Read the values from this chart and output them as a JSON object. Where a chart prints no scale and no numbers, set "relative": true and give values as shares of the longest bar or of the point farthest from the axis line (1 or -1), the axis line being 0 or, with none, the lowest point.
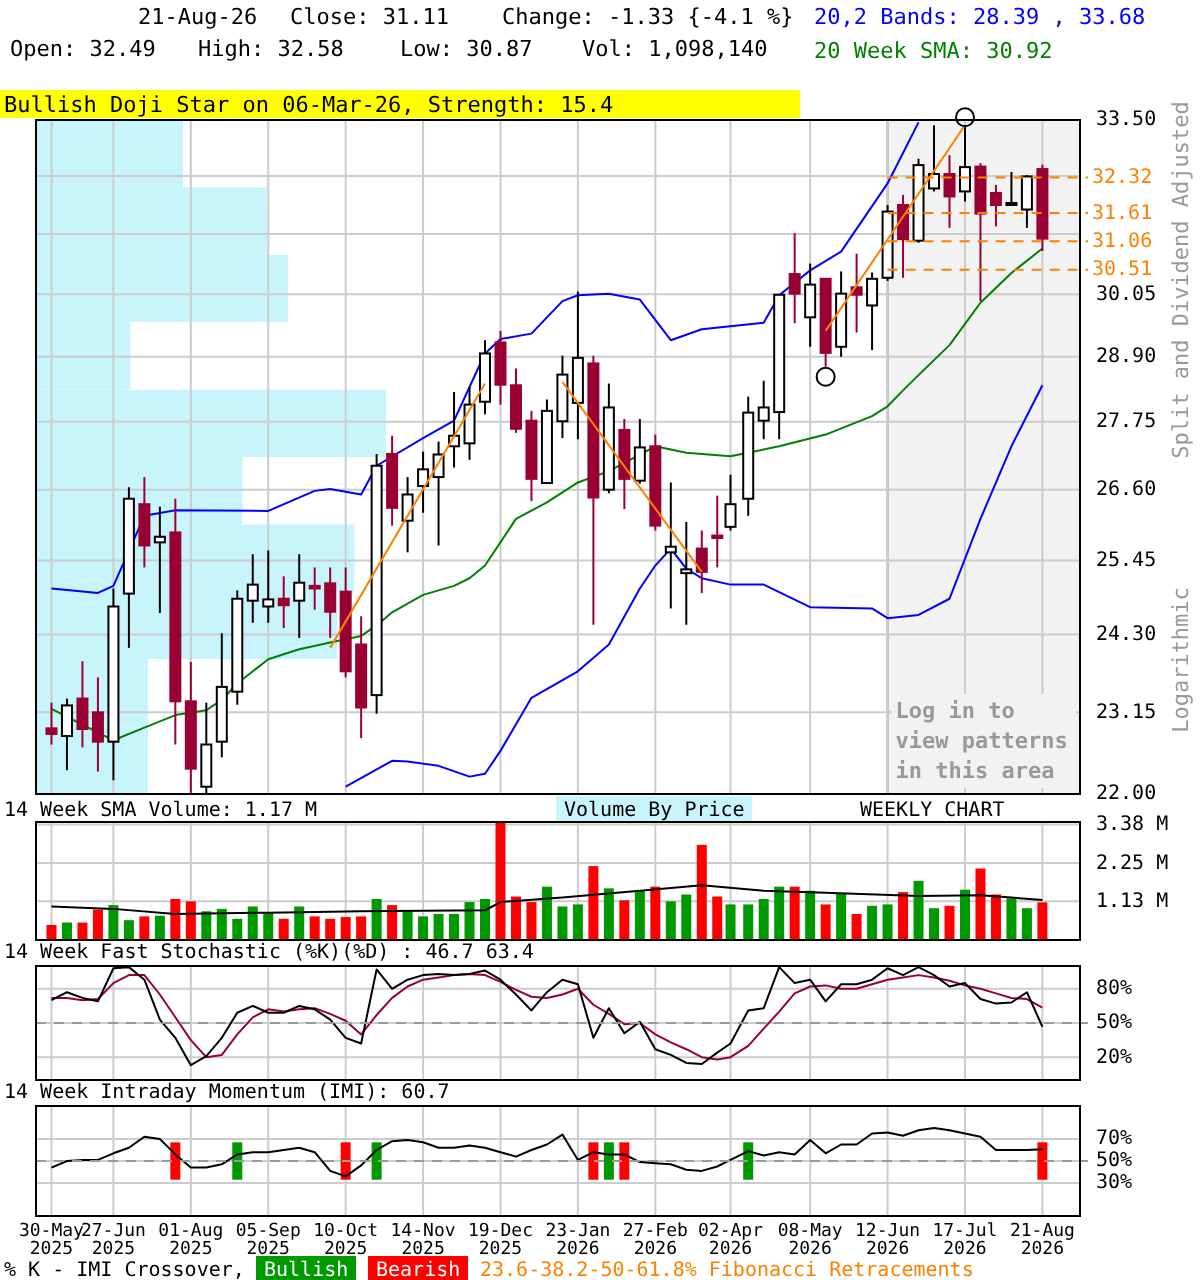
{
  "chart_data": [
    {
      "type": "candlestick",
      "log": true,
      "grid": true,
      "tick_labels": "y",
      "legend": "top right",
      "ylabel": "Split and Dividend Adjusted",
      "xlim": [
        "2025-05-23",
        "2026-09-07"
      ],
      "ylim": [
        22,
        33.5
      ],
      "yticks": [
        {
          "value": 22,
          "label": "22.00"
        },
        {
          "value": 23.15,
          "label": "23.15"
        },
        {
          "value": 24.3,
          "label": "24.30"
        },
        {
          "value": 25.45,
          "label": "25.45"
        },
        {
          "value": 26.6,
          "label": "26.60"
        },
        {
          "value": 27.75,
          "label": "27.75"
        },
        {
          "value": 28.9,
          "label": "28.90"
        },
        {
          "value": 30.05,
          "label": "30.05"
        },
        {
          "value": 31.2,
          "label": null
        },
        {
          "value": 32.35,
          "label": null
        },
        {
          "value": 33.5,
          "label": "33.50"
        }
      ],
      "xticks": [
        {
          "value": "2025-05-30",
          "label": null
        },
        {
          "value": "2025-06-27",
          "label": null
        },
        {
          "value": "2025-08-01",
          "label": null
        },
        {
          "value": "2025-09-05",
          "label": null
        },
        {
          "value": "2025-10-10",
          "label": null
        },
        {
          "value": "2025-11-14",
          "label": null
        },
        {
          "value": "2025-12-19",
          "label": null
        },
        {
          "value": "2026-01-23",
          "label": null
        },
        {
          "value": "2026-02-27",
          "label": null
        },
        {
          "value": "2026-04-02",
          "label": null
        },
        {
          "value": "2026-05-08",
          "label": null
        },
        {
          "value": "2026-06-12",
          "label": null
        },
        {
          "value": "2026-07-17",
          "label": null
        },
        {
          "value": "2026-08-21",
          "label": null
        }
      ],
      "x": [
        "2025-05-30",
        "2025-06-06",
        "2025-06-13",
        "2025-06-20",
        "2025-06-27",
        "2025-07-04",
        "2025-07-11",
        "2025-07-18",
        "2025-07-25",
        "2025-08-01",
        "2025-08-08",
        "2025-08-15",
        "2025-08-22",
        "2025-08-29",
        "2025-09-05",
        "2025-09-12",
        "2025-09-19",
        "2025-09-26",
        "2025-10-03",
        "2025-10-10",
        "2025-10-17",
        "2025-10-24",
        "2025-10-31",
        "2025-11-07",
        "2025-11-14",
        "2025-11-21",
        "2025-11-28",
        "2025-12-05",
        "2025-12-12",
        "2025-12-19",
        "2025-12-26",
        "2026-01-02",
        "2026-01-09",
        "2026-01-16",
        "2026-01-23",
        "2026-01-30",
        "2026-02-06",
        "2026-02-13",
        "2026-02-20",
        "2026-02-27",
        "2026-03-06",
        "2026-03-13",
        "2026-03-20",
        "2026-03-27",
        "2026-04-02",
        "2026-04-10",
        "2026-04-17",
        "2026-04-24",
        "2026-05-01",
        "2026-05-08",
        "2026-05-15",
        "2026-05-22",
        "2026-05-29",
        "2026-06-05",
        "2026-06-12",
        "2026-06-19",
        "2026-06-26",
        "2026-07-03",
        "2026-07-10",
        "2026-07-17",
        "2026-07-24",
        "2026-07-31",
        "2026-08-07",
        "2026-08-14",
        "2026-08-21"
      ],
      "ohlc": [
        [
          22.92,
          23.29,
          22.69,
          22.84
        ],
        [
          22.81,
          23.35,
          22.33,
          23.25
        ],
        [
          23.35,
          23.9,
          22.65,
          22.91
        ],
        [
          23.15,
          23.66,
          22.31,
          22.73
        ],
        [
          22.73,
          25.01,
          22.19,
          24.73
        ],
        [
          24.93,
          26.64,
          24.1,
          26.45
        ],
        [
          26.36,
          26.81,
          25.34,
          25.69
        ],
        [
          25.74,
          26.32,
          24.63,
          25.83
        ],
        [
          25.9,
          26.45,
          22.69,
          23.31
        ],
        [
          23.31,
          23.89,
          22.0,
          22.35
        ],
        [
          22.1,
          23.29,
          22.0,
          22.69
        ],
        [
          22.73,
          24.32,
          22.51,
          23.52
        ],
        [
          23.45,
          24.98,
          23.26,
          24.85
        ],
        [
          24.82,
          25.55,
          24.48,
          25.07
        ],
        [
          24.73,
          25.61,
          24.48,
          24.84
        ],
        [
          24.85,
          25.2,
          24.4,
          24.75
        ],
        [
          24.82,
          25.55,
          24.25,
          25.1
        ],
        [
          25.05,
          25.34,
          24.68,
          25.01
        ],
        [
          25.09,
          25.34,
          24.25,
          24.65
        ],
        [
          24.96,
          25.34,
          23.66,
          23.75
        ],
        [
          24.15,
          24.58,
          22.78,
          23.22
        ],
        [
          23.4,
          27.2,
          23.13,
          27.0
        ],
        [
          27.2,
          27.51,
          26.01,
          26.3
        ],
        [
          26.09,
          26.81,
          25.58,
          26.52
        ],
        [
          26.66,
          27.24,
          26.22,
          26.94
        ],
        [
          26.81,
          27.41,
          25.69,
          27.19
        ],
        [
          27.33,
          28.27,
          26.97,
          27.51
        ],
        [
          27.38,
          28.36,
          27.1,
          28.05
        ],
        [
          28.1,
          29.2,
          27.88,
          28.96
        ],
        [
          29.16,
          29.37,
          28.05,
          28.4
        ],
        [
          28.39,
          28.69,
          27.56,
          27.63
        ],
        [
          27.77,
          27.94,
          26.41,
          26.78
        ],
        [
          26.71,
          28.14,
          26.71,
          27.94
        ],
        [
          27.76,
          28.92,
          27.47,
          28.58
        ],
        [
          28.08,
          30.1,
          27.45,
          28.88
        ],
        [
          28.78,
          28.92,
          24.45,
          26.47
        ],
        [
          26.6,
          28.42,
          26.54,
          28.0
        ],
        [
          27.61,
          27.8,
          26.28,
          26.78
        ],
        [
          26.75,
          27.8,
          26.7,
          27.31
        ],
        [
          27.33,
          27.53,
          25.93,
          26.01
        ],
        [
          25.58,
          26.72,
          24.7,
          25.67
        ],
        [
          25.25,
          26.07,
          24.45,
          25.31
        ],
        [
          25.64,
          25.93,
          24.94,
          25.27
        ],
        [
          25.85,
          26.5,
          25.34,
          25.81
        ],
        [
          25.99,
          26.85,
          25.93,
          26.36
        ],
        [
          26.45,
          28.19,
          26.17,
          27.91
        ],
        [
          27.77,
          28.47,
          27.45,
          28.0
        ],
        [
          27.92,
          30.04,
          27.45,
          30.04
        ],
        [
          30.43,
          31.22,
          29.51,
          30.06
        ],
        [
          29.62,
          30.63,
          29.08,
          30.23
        ],
        [
          30.34,
          30.34,
          28.72,
          28.97
        ],
        [
          29.08,
          30.48,
          28.9,
          30.06
        ],
        [
          30.18,
          30.82,
          29.34,
          30.04
        ],
        [
          29.84,
          30.46,
          29.02,
          30.34
        ],
        [
          30.36,
          31.77,
          30.3,
          31.64
        ],
        [
          31.77,
          31.97,
          30.36,
          31.1
        ],
        [
          31.07,
          32.7,
          31.03,
          32.57
        ],
        [
          32.1,
          33.39,
          32.04,
          32.39
        ],
        [
          32.39,
          32.77,
          31.32,
          31.94
        ],
        [
          32.04,
          33.39,
          31.84,
          32.53
        ],
        [
          32.54,
          32.61,
          29.92,
          31.6
        ],
        [
          32.01,
          32.17,
          31.35,
          31.77
        ],
        [
          31.77,
          32.43,
          31.77,
          31.81
        ],
        [
          31.68,
          32.37,
          31.32,
          32.34
        ],
        [
          32.49,
          32.58,
          30.87,
          31.11
        ]
      ],
      "series": [
        {
          "type": "line",
          "name": "20,2 Bands: 28.39 , 33.68",
          "color": "#0000ff",
          "x": [
            "2025-05-30",
            "2025-06-20",
            "2025-06-27",
            "2025-07-11",
            "2025-07-25",
            "2025-09-05",
            "2025-09-26",
            "2025-10-03",
            "2025-10-17",
            "2025-10-24",
            "2025-11-14",
            "2025-11-28",
            "2025-12-05",
            "2025-12-12",
            "2025-12-19",
            "2026-01-02",
            "2026-01-16",
            "2026-01-23",
            "2026-02-06",
            "2026-02-20",
            "2026-03-06",
            "2026-03-20",
            "2026-04-17",
            "2026-04-24",
            "2026-05-08",
            "2026-05-22",
            "2026-06-12",
            "2026-06-26"
          ],
          "values": [
            25.01,
            24.94,
            25.05,
            26.17,
            26.26,
            26.25,
            26.58,
            26.61,
            26.52,
            27.0,
            27.47,
            27.77,
            28.36,
            28.96,
            29.22,
            29.32,
            29.92,
            30.03,
            30.06,
            29.95,
            29.2,
            29.4,
            29.52,
            30.03,
            30.5,
            30.86,
            32.2,
            33.45
          ]
        },
        {
          "type": "line",
          "name": "20 Week SMA: 30.92",
          "color": "#008000",
          "x": [
            "2025-05-30",
            "2025-06-27",
            "2025-07-11",
            "2025-07-25",
            "2025-08-08",
            "2025-08-15",
            "2025-08-22",
            "2025-09-05",
            "2025-09-19",
            "2025-10-03",
            "2025-10-17",
            "2025-10-24",
            "2025-10-31",
            "2025-11-14",
            "2025-11-28",
            "2025-12-05",
            "2025-12-12",
            "2025-12-26",
            "2026-01-09",
            "2026-01-23",
            "2026-02-06",
            "2026-02-27",
            "2026-03-13",
            "2026-04-02",
            "2026-04-24",
            "2026-05-15",
            "2026-06-05",
            "2026-06-12",
            "2026-06-19",
            "2026-06-26",
            "2026-07-10",
            "2026-07-24",
            "2026-08-07",
            "2026-08-21"
          ],
          "values": [
            23.2,
            22.75,
            22.93,
            23.11,
            23.18,
            23.33,
            23.57,
            23.93,
            24.08,
            24.18,
            24.28,
            24.44,
            24.64,
            24.91,
            25.05,
            25.17,
            25.37,
            26.12,
            26.39,
            26.72,
            26.91,
            27.33,
            27.22,
            27.16,
            27.33,
            27.53,
            27.85,
            28.02,
            28.3,
            28.57,
            29.11,
            29.89,
            30.45,
            30.92
          ]
        },
        {
          "type": "line",
          "color": "#0000ff",
          "x": [
            "2025-10-10",
            "2025-10-31",
            "2025-11-07",
            "2025-11-21",
            "2025-12-05",
            "2025-12-12",
            "2025-12-19",
            "2026-01-02",
            "2026-01-23",
            "2026-02-06",
            "2026-02-20",
            "2026-02-27",
            "2026-03-06",
            "2026-03-13",
            "2026-03-20",
            "2026-04-02",
            "2026-04-17",
            "2026-05-08",
            "2026-06-05",
            "2026-06-12",
            "2026-06-26",
            "2026-07-10",
            "2026-07-24",
            "2026-08-07",
            "2026-08-21"
          ],
          "values": [
            22.1,
            22.46,
            22.45,
            22.39,
            22.24,
            22.28,
            22.6,
            23.36,
            23.75,
            24.15,
            25.01,
            25.37,
            25.64,
            25.32,
            25.17,
            25.07,
            25.07,
            24.72,
            24.7,
            24.55,
            24.6,
            24.85,
            26.12,
            27.33,
            28.39
          ]
        },
        {
          "type": "line",
          "color": "#ff8000",
          "x": [
            "2025-10-03",
            "2025-12-12",
            "2025-12-19",
            "2026-01-16",
            "2026-03-20",
            "2026-03-27",
            "2026-05-15",
            "2026-07-17"
          ],
          "values": [
            24.1,
            28.42,
            null,
            28.45,
            25.27,
            null,
            29.37,
            33.39
          ]
        }
      ],
      "ref_lines": [
        {
          "axis": "y",
          "value": 32.32,
          "label": "32.32",
          "color": "#ff8000",
          "line_style": "dashed"
        },
        {
          "axis": "y",
          "value": 31.61,
          "label": "31.61",
          "color": "#ff8000",
          "line_style": "dashed"
        },
        {
          "axis": "y",
          "value": 31.06,
          "label": "31.06",
          "color": "#ff8000",
          "line_style": "dashed"
        },
        {
          "axis": "y",
          "value": 30.51,
          "label": "30.51",
          "color": "#ff8000",
          "line_style": "dashed"
        }
      ],
      "bands": [
        {
          "axis": "x",
          "from": "2026-06-12",
          "to": "2026-09-07",
          "label": "Log in to view patterns in this area",
          "color": "#f2f2f2"
        }
      ],
      "annotations": [
        "21-Aug-26",
        "Close: 31.11",
        "Change: -1.33 {-4.1 %}",
        "Open: 32.49",
        "High: 32.58",
        "Low: 30.87",
        "Vol: 1,098,140",
        "Bullish Doji Star on 06-Mar-26, Strength: 15.4",
        "Logarithmic",
        "23.6-38.2-50-61.8% Fibonacci Retracements"
      ]
    },
    {
      "type": "bar",
      "orientation": "horizontal",
      "relative": true,
      "color": "#c8f4fc",
      "categories": [
        null,
        null,
        null,
        null,
        null,
        null,
        null,
        null,
        null,
        null
      ],
      "values": [
        0.42,
        0.66,
        0.72,
        0.27,
        1,
        0.59,
        0.91,
        0.86,
        0.32,
        0.32
      ]
    },
    {
      "type": "bar",
      "title": "14 Week SMA Volume: 1.17 M",
      "grid": true,
      "tick_labels": "y",
      "xlim": [
        "2025-05-23",
        "2026-09-07"
      ],
      "ylim": [
        0,
        3.45
      ],
      "yticks": [
        {
          "value": 1.13,
          "label": "1.13 M"
        },
        {
          "value": 2.25,
          "label": "2.25 M"
        },
        {
          "value": 3.38,
          "label": "3.38 M"
        }
      ],
      "xticks": [
        {
          "value": "2025-05-30",
          "label": null
        },
        {
          "value": "2025-06-27",
          "label": null
        },
        {
          "value": "2025-08-01",
          "label": null
        },
        {
          "value": "2025-09-05",
          "label": null
        },
        {
          "value": "2025-10-10",
          "label": null
        },
        {
          "value": "2025-11-14",
          "label": null
        },
        {
          "value": "2025-12-19",
          "label": null
        },
        {
          "value": "2026-01-23",
          "label": null
        },
        {
          "value": "2026-02-27",
          "label": null
        },
        {
          "value": "2026-04-02",
          "label": null
        },
        {
          "value": "2026-05-08",
          "label": null
        },
        {
          "value": "2026-06-12",
          "label": null
        },
        {
          "value": "2026-07-17",
          "label": null
        },
        {
          "value": "2026-08-21",
          "label": null
        }
      ],
      "x": [
        "2025-05-30",
        "2025-06-06",
        "2025-06-13",
        "2025-06-20",
        "2025-06-27",
        "2025-07-04",
        "2025-07-11",
        "2025-07-18",
        "2025-07-25",
        "2025-08-01",
        "2025-08-08",
        "2025-08-15",
        "2025-08-22",
        "2025-08-29",
        "2025-09-05",
        "2025-09-12",
        "2025-09-19",
        "2025-09-26",
        "2025-10-03",
        "2025-10-10",
        "2025-10-17",
        "2025-10-24",
        "2025-10-31",
        "2025-11-07",
        "2025-11-14",
        "2025-11-21",
        "2025-11-28",
        "2025-12-05",
        "2025-12-12",
        "2025-12-19",
        "2025-12-26",
        "2026-01-02",
        "2026-01-09",
        "2026-01-16",
        "2026-01-23",
        "2026-01-30",
        "2026-02-06",
        "2026-02-13",
        "2026-02-20",
        "2026-02-27",
        "2026-03-06",
        "2026-03-13",
        "2026-03-20",
        "2026-03-27",
        "2026-04-02",
        "2026-04-10",
        "2026-04-17",
        "2026-04-24",
        "2026-05-01",
        "2026-05-08",
        "2026-05-15",
        "2026-05-22",
        "2026-05-29",
        "2026-06-05",
        "2026-06-12",
        "2026-06-19",
        "2026-06-26",
        "2026-07-03",
        "2026-07-10",
        "2026-07-17",
        "2026-07-24",
        "2026-07-31",
        "2026-08-07",
        "2026-08-14",
        "2026-08-21"
      ],
      "series": [
        {
          "type": "bar",
          "values": [
            0.44,
            0.51,
            0.51,
            0.89,
            1.02,
            0.58,
            0.69,
            0.71,
            1.2,
            1.13,
            0.84,
            0.91,
            0.62,
            0.98,
            0.78,
            0.62,
            0.98,
            0.69,
            0.62,
            0.67,
            0.69,
            1.2,
            1.02,
            0.84,
            0.69,
            0.76,
            0.76,
            1.11,
            1.2,
            3.45,
            1.27,
            1.11,
            1.56,
            0.98,
            1.04,
            2.16,
            1.51,
            1.16,
            1.44,
            1.56,
            1.13,
            1.33,
            2.78,
            1.27,
            1.04,
            1.04,
            1.2,
            1.56,
            1.56,
            1.44,
            1.04,
            1.36,
            0.76,
            1.0,
            1.04,
            1.4,
            1.73,
            0.93,
            1.0,
            1.47,
            2.09,
            1.33,
            1.22,
            0.93,
            1.1
          ],
          "colors": [
            "#ff0000",
            "#009900",
            "#ff0000",
            "#ff0000",
            "#009900",
            "#009900",
            "#ff0000",
            "#009900",
            "#ff0000",
            "#ff0000",
            "#009900",
            "#009900",
            "#009900",
            "#009900",
            "#009900",
            "#ff0000",
            "#009900",
            "#ff0000",
            "#ff0000",
            "#ff0000",
            "#ff0000",
            "#009900",
            "#ff0000",
            "#009900",
            "#009900",
            "#009900",
            "#009900",
            "#009900",
            "#009900",
            "#ff0000",
            "#ff0000",
            "#ff0000",
            "#009900",
            "#009900",
            "#009900",
            "#ff0000",
            "#009900",
            "#ff0000",
            "#009900",
            "#ff0000",
            "#009900",
            "#009900",
            "#ff0000",
            "#ff0000",
            "#009900",
            "#009900",
            "#009900",
            "#009900",
            "#ff0000",
            "#009900",
            "#ff0000",
            "#009900",
            "#ff0000",
            "#009900",
            "#009900",
            "#ff0000",
            "#009900",
            "#009900",
            "#ff0000",
            "#009900",
            "#ff0000",
            "#ff0000",
            "#009900",
            "#009900",
            "#ff0000"
          ]
        },
        {
          "type": "line",
          "color": "#000000",
          "x": [
            "2025-05-30",
            "2025-06-27",
            "2025-07-25",
            "2025-09-05",
            "2025-10-17",
            "2025-12-12",
            "2025-12-19",
            "2026-01-16",
            "2026-02-20",
            "2026-03-20",
            "2026-04-17",
            "2026-05-15",
            "2026-06-26",
            "2026-07-24",
            "2026-08-21"
          ],
          "values": [
            0.98,
            0.91,
            0.76,
            0.8,
            0.84,
            0.87,
            1.11,
            1.24,
            1.44,
            1.6,
            1.44,
            1.38,
            1.29,
            1.31,
            1.17
          ]
        }
      ],
      "annotations": [
        "Volume By Price",
        "WEEKLY CHART"
      ]
    },
    {
      "type": "line",
      "title": "14 Week Fast Stochastic (%K)(%D) : 46.7 63.4",
      "grid": true,
      "tick_labels": "y",
      "xlim": [
        "2025-05-23",
        "2026-09-07"
      ],
      "ylim": [
        0,
        100
      ],
      "yticks": [
        {
          "value": 20,
          "label": "20%"
        },
        {
          "value": 50,
          "label": "50%"
        },
        {
          "value": 80,
          "label": "80%"
        }
      ],
      "xticks": [
        {
          "value": "2025-05-30",
          "label": null
        },
        {
          "value": "2025-06-27",
          "label": null
        },
        {
          "value": "2025-08-01",
          "label": null
        },
        {
          "value": "2025-09-05",
          "label": null
        },
        {
          "value": "2025-10-10",
          "label": null
        },
        {
          "value": "2025-11-14",
          "label": null
        },
        {
          "value": "2025-12-19",
          "label": null
        },
        {
          "value": "2026-01-23",
          "label": null
        },
        {
          "value": "2026-02-27",
          "label": null
        },
        {
          "value": "2026-04-02",
          "label": null
        },
        {
          "value": "2026-05-08",
          "label": null
        },
        {
          "value": "2026-06-12",
          "label": null
        },
        {
          "value": "2026-07-17",
          "label": null
        },
        {
          "value": "2026-08-21",
          "label": null
        }
      ],
      "x": [
        "2025-05-30",
        "2025-06-06",
        "2025-06-13",
        "2025-06-20",
        "2025-06-27",
        "2025-07-04",
        "2025-07-11",
        "2025-07-18",
        "2025-07-25",
        "2025-08-01",
        "2025-08-08",
        "2025-08-15",
        "2025-08-22",
        "2025-08-29",
        "2025-09-05",
        "2025-09-12",
        "2025-09-19",
        "2025-09-26",
        "2025-10-03",
        "2025-10-10",
        "2025-10-17",
        "2025-10-24",
        "2025-10-31",
        "2025-11-07",
        "2025-11-14",
        "2025-11-21",
        "2025-11-28",
        "2025-12-05",
        "2025-12-12",
        "2025-12-19",
        "2025-12-26",
        "2026-01-02",
        "2026-01-09",
        "2026-01-16",
        "2026-01-23",
        "2026-01-30",
        "2026-02-06",
        "2026-02-13",
        "2026-02-20",
        "2026-02-27",
        "2026-03-06",
        "2026-03-13",
        "2026-03-20",
        "2026-03-27",
        "2026-04-02",
        "2026-04-10",
        "2026-04-17",
        "2026-04-24",
        "2026-05-01",
        "2026-05-08",
        "2026-05-15",
        "2026-05-22",
        "2026-05-29",
        "2026-06-05",
        "2026-06-12",
        "2026-06-19",
        "2026-06-26",
        "2026-07-03",
        "2026-07-10",
        "2026-07-17",
        "2026-07-24",
        "2026-07-31",
        "2026-08-07",
        "2026-08-14",
        "2026-08-21"
      ],
      "series": [
        {
          "color": "#990033",
          "values": [
            72,
            72,
            70,
            71,
            85,
            92,
            92,
            75,
            55,
            35,
            20,
            22,
            40,
            55,
            62,
            60,
            62,
            63,
            58,
            52,
            40,
            57,
            72,
            82,
            88,
            90,
            92,
            93,
            92,
            86,
            79,
            73,
            72,
            75,
            80,
            66,
            58,
            49,
            50,
            40,
            33,
            27,
            20,
            18,
            20,
            30,
            45,
            60,
            76,
            82,
            83,
            80,
            80,
            84,
            88,
            90,
            92,
            90,
            87,
            83,
            80,
            76,
            72,
            71,
            63.4
          ]
        },
        {
          "color": "#000000",
          "values": [
            70,
            77,
            72,
            69,
            98,
            99,
            88,
            53,
            37,
            13,
            21,
            37,
            59,
            65,
            59,
            59,
            65,
            62,
            53,
            37,
            32,
            97,
            80,
            88,
            92,
            93,
            92,
            93,
            96,
            88,
            75,
            61,
            77,
            88,
            84,
            37,
            63,
            41,
            51,
            27,
            22,
            15,
            14,
            24,
            32,
            61,
            63,
            99,
            85,
            88,
            69,
            84,
            84,
            88,
            98,
            92,
            99,
            92,
            82,
            85,
            71,
            67,
            68,
            77,
            46.7
          ]
        }
      ],
      "ref_lines": [
        {
          "axis": "y",
          "value": 50,
          "color": "#999999",
          "line_style": "dashed"
        }
      ]
    },
    {
      "type": "line",
      "title": "14 Week Intraday Momentum (IMI): 60.7",
      "grid": true,
      "legend": "bottom",
      "legend_title": "% K - IMI Crossover,",
      "xlim": [
        "2025-05-23",
        "2026-09-07"
      ],
      "ylim": [
        0,
        100
      ],
      "yticks": [
        {
          "value": 30,
          "label": "30%"
        },
        {
          "value": 50,
          "label": "50%"
        },
        {
          "value": 70,
          "label": "70%"
        }
      ],
      "xticks": [
        {
          "value": "2025-05-30",
          "label": "30-May 2025"
        },
        {
          "value": "2025-06-27",
          "label": "27-Jun 2025"
        },
        {
          "value": "2025-08-01",
          "label": "01-Aug 2025"
        },
        {
          "value": "2025-09-05",
          "label": "05-Sep 2025"
        },
        {
          "value": "2025-10-10",
          "label": "10-Oct 2025"
        },
        {
          "value": "2025-11-14",
          "label": "14-Nov 2025"
        },
        {
          "value": "2025-12-19",
          "label": "19-Dec 2025"
        },
        {
          "value": "2026-01-23",
          "label": "23-Jan 2026"
        },
        {
          "value": "2026-02-27",
          "label": "27-Feb 2026"
        },
        {
          "value": "2026-04-02",
          "label": "02-Apr 2026"
        },
        {
          "value": "2026-05-08",
          "label": "08-May 2026"
        },
        {
          "value": "2026-06-12",
          "label": "12-Jun 2026"
        },
        {
          "value": "2026-07-17",
          "label": "17-Jul 2026"
        },
        {
          "value": "2026-08-21",
          "label": "21-Aug 2026"
        }
      ],
      "x": [
        "2025-05-30",
        "2025-06-06",
        "2025-06-13",
        "2025-06-20",
        "2025-06-27",
        "2025-07-04",
        "2025-07-11",
        "2025-07-18",
        "2025-07-25",
        "2025-08-01",
        "2025-08-08",
        "2025-08-15",
        "2025-08-22",
        "2025-08-29",
        "2025-09-05",
        "2025-09-12",
        "2025-09-19",
        "2025-09-26",
        "2025-10-03",
        "2025-10-10",
        "2025-10-17",
        "2025-10-24",
        "2025-10-31",
        "2025-11-07",
        "2025-11-14",
        "2025-11-21",
        "2025-11-28",
        "2025-12-05",
        "2025-12-12",
        "2025-12-19",
        "2025-12-26",
        "2026-01-02",
        "2026-01-09",
        "2026-01-16",
        "2026-01-23",
        "2026-01-30",
        "2026-02-06",
        "2026-02-13",
        "2026-02-20",
        "2026-02-27",
        "2026-03-06",
        "2026-03-13",
        "2026-03-20",
        "2026-03-27",
        "2026-04-02",
        "2026-04-10",
        "2026-04-17",
        "2026-04-24",
        "2026-05-01",
        "2026-05-08",
        "2026-05-15",
        "2026-05-22",
        "2026-05-29",
        "2026-06-05",
        "2026-06-12",
        "2026-06-19",
        "2026-06-26",
        "2026-07-03",
        "2026-07-10",
        "2026-07-17",
        "2026-07-24",
        "2026-07-31",
        "2026-08-07",
        "2026-08-14",
        "2026-08-21"
      ],
      "series": [
        {
          "type": "bar",
          "name": "Bullish",
          "color": "#009900",
          "x": [
            "2025-08-22",
            "2025-10-24",
            "2026-02-06",
            "2026-04-10"
          ],
          "base": [
            33,
            33,
            33,
            33
          ],
          "values": [
            34,
            34,
            34,
            34
          ]
        },
        {
          "type": "bar",
          "name": "Bearish",
          "color": "#ff0000",
          "x": [
            "2025-07-25",
            "2025-10-10",
            "2026-01-30",
            "2026-02-13",
            "2026-08-21"
          ],
          "base": [
            33,
            33,
            33,
            33,
            33
          ],
          "values": [
            34,
            34,
            34,
            34,
            34
          ]
        },
        {
          "type": "line",
          "color": "#000000",
          "values": [
            44,
            50,
            51,
            51,
            57,
            62,
            72,
            70,
            56,
            44,
            44,
            47,
            56,
            58,
            58,
            60,
            62,
            58,
            41,
            36,
            46,
            60,
            68,
            69,
            67,
            62,
            62,
            64,
            62,
            58,
            54,
            60,
            65,
            74,
            51,
            58,
            56,
            56,
            49,
            48,
            47,
            42,
            41,
            45,
            51,
            59,
            55,
            58,
            56,
            69,
            57,
            65,
            65,
            75,
            76,
            73,
            78,
            80,
            78,
            75,
            72,
            60,
            60,
            60,
            60.7
          ]
        }
      ],
      "ref_lines": [
        {
          "axis": "y",
          "value": 50,
          "color": "#999999",
          "line_style": "dashed"
        }
      ]
    }
  ]
}
